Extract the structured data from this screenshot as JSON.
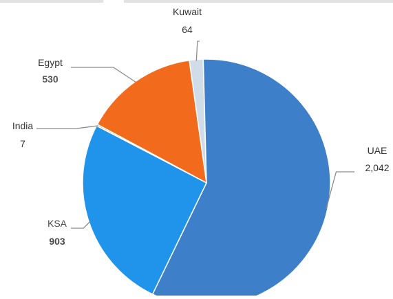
{
  "chart_data": {
    "type": "pie",
    "title": "",
    "slices": [
      {
        "name": "Kuwait",
        "label": "64",
        "value": 64,
        "color": "#d0dde8",
        "name_color": "#333333",
        "value_color": "#333333"
      },
      {
        "name": "UAE",
        "label": "2,042",
        "value": 2042,
        "color": "#3d7fc8",
        "name_color": "#333333",
        "value_color": "#333333"
      },
      {
        "name": "KSA",
        "label": "903",
        "value": 903,
        "color": "#2094ea",
        "name_color": "#4a4a4a",
        "value_color": "#4a4a4a"
      },
      {
        "name": "India",
        "label": "7",
        "value": 7,
        "color": "#f0a830",
        "name_color": "#333333",
        "value_color": "#333333"
      },
      {
        "name": "Egypt",
        "label": "530",
        "value": 530,
        "color": "#f26b1d",
        "name_color": "#333333",
        "value_color": "#555555"
      }
    ],
    "start_angle_deg": -8,
    "direction": "clockwise",
    "legend": "none",
    "leader_line_color": "#8a8a8a"
  }
}
